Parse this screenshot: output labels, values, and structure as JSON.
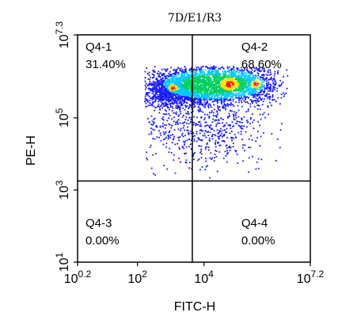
{
  "chart_data": {
    "type": "scatter",
    "title": "7D/E1/R3",
    "xlabel": "FITC-H",
    "ylabel": "PE-H",
    "x_scale": "log",
    "y_scale": "log",
    "xlim_exponent": [
      0.2,
      7.2
    ],
    "ylim_exponent": [
      1,
      7.3
    ],
    "x_ticks": [
      {
        "base": "10",
        "exp": "0.2",
        "value": 0.2
      },
      {
        "base": "10",
        "exp": "2",
        "value": 2
      },
      {
        "base": "10",
        "exp": "4",
        "value": 4
      },
      {
        "base": "10",
        "exp": "7.2",
        "value": 7.2
      }
    ],
    "y_ticks": [
      {
        "base": "10",
        "exp": "1",
        "value": 1
      },
      {
        "base": "10",
        "exp": "3",
        "value": 3
      },
      {
        "base": "10",
        "exp": "5",
        "value": 5
      },
      {
        "base": "10",
        "exp": "7.3",
        "value": 7.3
      }
    ],
    "gate_x_exponent": 3.65,
    "gate_y_exponent": 3.25,
    "quadrants": [
      {
        "name": "Q4-1",
        "value": "31.40%",
        "position": "top-left"
      },
      {
        "name": "Q4-2",
        "value": "68.60%",
        "position": "top-right"
      },
      {
        "name": "Q4-3",
        "value": "0.00%",
        "position": "bottom-left"
      },
      {
        "name": "Q4-4",
        "value": "0.00%",
        "position": "bottom-right"
      }
    ],
    "density_colors": [
      "#1a1aff",
      "#00c8ff",
      "#00d060",
      "#ffe000",
      "#ff2000"
    ],
    "grid": false
  }
}
